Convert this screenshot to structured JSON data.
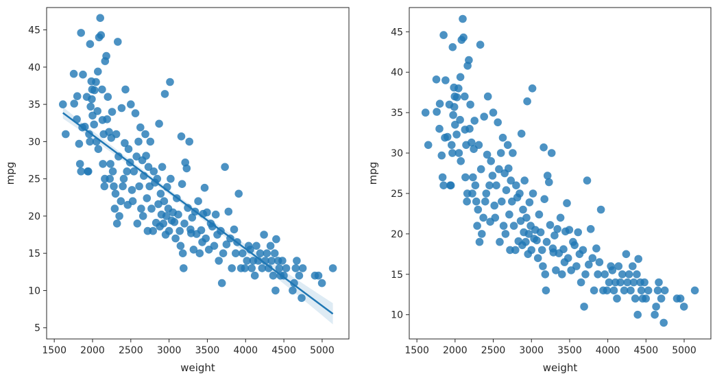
{
  "figure": {
    "background": "#ffffff",
    "marker_color": "#1f77b4",
    "marker_alpha": 0.8
  },
  "chart_data": [
    {
      "type": "scatter",
      "title": "",
      "xlabel": "weight",
      "ylabel": "mpg",
      "xlim": [
        1400,
        5350
      ],
      "ylim": [
        3.5,
        48.0
      ],
      "xticks": [
        1500,
        2000,
        2500,
        3000,
        3500,
        4000,
        4500,
        5000
      ],
      "yticks": [
        5,
        10,
        15,
        20,
        25,
        30,
        35,
        40,
        45
      ],
      "grid": false,
      "legend": "none",
      "regression": {
        "show": true,
        "intercept": 46.2,
        "slope": -0.00765,
        "x_range": [
          1613,
          5140
        ],
        "ci": true
      }
    },
    {
      "type": "scatter",
      "title": "",
      "xlabel": "weight",
      "ylabel": "mpg",
      "xlim": [
        1400,
        5350
      ],
      "ylim": [
        7.0,
        48.0
      ],
      "xticks": [
        1500,
        2000,
        2500,
        3000,
        3500,
        4000,
        4500,
        5000
      ],
      "yticks": [
        10,
        15,
        20,
        25,
        30,
        35,
        40,
        45
      ],
      "grid": false,
      "legend": "none",
      "regression": {
        "show": false
      }
    }
  ],
  "scatter_points": [
    [
      1613,
      35
    ],
    [
      1649,
      31
    ],
    [
      1755,
      39.1
    ],
    [
      1760,
      35.1
    ],
    [
      1795,
      33
    ],
    [
      1800,
      36.1
    ],
    [
      1825,
      29.7
    ],
    [
      1836,
      27
    ],
    [
      1850,
      26
    ],
    [
      1850,
      44.6
    ],
    [
      1867,
      31.9
    ],
    [
      1875,
      39
    ],
    [
      1900,
      32
    ],
    [
      1925,
      36
    ],
    [
      1937,
      26
    ],
    [
      1945,
      26
    ],
    [
      1955,
      31
    ],
    [
      1965,
      30
    ],
    [
      1968,
      43.1
    ],
    [
      1975,
      34.7
    ],
    [
      1985,
      38.1
    ],
    [
      1990,
      35.7
    ],
    [
      1995,
      37
    ],
    [
      2000,
      33.5
    ],
    [
      2020,
      32.3
    ],
    [
      2025,
      36.9
    ],
    [
      2045,
      38
    ],
    [
      2050,
      30
    ],
    [
      2065,
      34.1
    ],
    [
      2070,
      39.4
    ],
    [
      2075,
      29
    ],
    [
      2085,
      44
    ],
    [
      2100,
      46.6
    ],
    [
      2110,
      44.3
    ],
    [
      2125,
      37
    ],
    [
      2130,
      32.9
    ],
    [
      2135,
      27
    ],
    [
      2145,
      31
    ],
    [
      2155,
      24
    ],
    [
      2160,
      25
    ],
    [
      2164,
      40.8
    ],
    [
      2180,
      41.5
    ],
    [
      2190,
      33
    ],
    [
      2200,
      36
    ],
    [
      2215,
      31.3
    ],
    [
      2226,
      25
    ],
    [
      2234,
      27
    ],
    [
      2245,
      30.5
    ],
    [
      2255,
      34
    ],
    [
      2265,
      26
    ],
    [
      2278,
      24
    ],
    [
      2290,
      21
    ],
    [
      2300,
      23
    ],
    [
      2310,
      31
    ],
    [
      2320,
      19
    ],
    [
      2330,
      43.4
    ],
    [
      2340,
      28
    ],
    [
      2350,
      20
    ],
    [
      2370,
      22
    ],
    [
      2380,
      34.5
    ],
    [
      2395,
      24
    ],
    [
      2408,
      25
    ],
    [
      2420,
      29.8
    ],
    [
      2430,
      37
    ],
    [
      2450,
      26
    ],
    [
      2460,
      21.5
    ],
    [
      2470,
      29
    ],
    [
      2490,
      27.2
    ],
    [
      2500,
      35
    ],
    [
      2515,
      23.5
    ],
    [
      2525,
      22
    ],
    [
      2540,
      26
    ],
    [
      2560,
      33.8
    ],
    [
      2575,
      28
    ],
    [
      2585,
      19
    ],
    [
      2600,
      30
    ],
    [
      2610,
      24
    ],
    [
      2625,
      31.9
    ],
    [
      2635,
      21
    ],
    [
      2650,
      27.5
    ],
    [
      2660,
      20
    ],
    [
      2670,
      25.4
    ],
    [
      2690,
      31
    ],
    [
      2700,
      28.1
    ],
    [
      2710,
      22.4
    ],
    [
      2720,
      18
    ],
    [
      2730,
      26.6
    ],
    [
      2745,
      24
    ],
    [
      2755,
      30
    ],
    [
      2770,
      21
    ],
    [
      2790,
      18
    ],
    [
      2800,
      26
    ],
    [
      2815,
      24.5
    ],
    [
      2830,
      19.1
    ],
    [
      2845,
      25
    ],
    [
      2860,
      21.6
    ],
    [
      2870,
      32.4
    ],
    [
      2880,
      18.6
    ],
    [
      2890,
      23
    ],
    [
      2900,
      20.2
    ],
    [
      2910,
      26.6
    ],
    [
      2925,
      19
    ],
    [
      2935,
      22
    ],
    [
      2945,
      36.4
    ],
    [
      2955,
      17.5
    ],
    [
      2965,
      20
    ],
    [
      2975,
      23.9
    ],
    [
      2990,
      21
    ],
    [
      3000,
      18
    ],
    [
      3012,
      38
    ],
    [
      3020,
      25
    ],
    [
      3035,
      19.4
    ],
    [
      3050,
      20.5
    ],
    [
      3070,
      19.2
    ],
    [
      3085,
      17
    ],
    [
      3100,
      22.4
    ],
    [
      3120,
      20.2
    ],
    [
      3139,
      18
    ],
    [
      3150,
      16
    ],
    [
      3160,
      30.7
    ],
    [
      3170,
      24.3
    ],
    [
      3180,
      15
    ],
    [
      3190,
      13
    ],
    [
      3200,
      19
    ],
    [
      3211,
      27.2
    ],
    [
      3230,
      26.4
    ],
    [
      3245,
      21.1
    ],
    [
      3265,
      30
    ],
    [
      3280,
      18.2
    ],
    [
      3288,
      17.7
    ],
    [
      3302,
      19.8
    ],
    [
      3320,
      15.5
    ],
    [
      3340,
      20.6
    ],
    [
      3360,
      17.6
    ],
    [
      3380,
      22
    ],
    [
      3400,
      15
    ],
    [
      3420,
      18.1
    ],
    [
      3433,
      16.5
    ],
    [
      3445,
      20.3
    ],
    [
      3465,
      23.8
    ],
    [
      3480,
      17
    ],
    [
      3495,
      20.5
    ],
    [
      3520,
      15.5
    ],
    [
      3545,
      19
    ],
    [
      3565,
      18.6
    ],
    [
      3590,
      16
    ],
    [
      3610,
      20.2
    ],
    [
      3630,
      17.5
    ],
    [
      3650,
      14
    ],
    [
      3675,
      18
    ],
    [
      3690,
      11
    ],
    [
      3707,
      15
    ],
    [
      3730,
      26.6
    ],
    [
      3750,
      16.2
    ],
    [
      3776,
      20.6
    ],
    [
      3800,
      17
    ],
    [
      3820,
      13
    ],
    [
      3850,
      18.2
    ],
    [
      3870,
      15
    ],
    [
      3890,
      16.5
    ],
    [
      3910,
      23
    ],
    [
      3940,
      13
    ],
    [
      3960,
      15
    ],
    [
      3990,
      13
    ],
    [
      4017,
      14
    ],
    [
      4040,
      16
    ],
    [
      4060,
      15.5
    ],
    [
      4080,
      13
    ],
    [
      4100,
      14
    ],
    [
      4120,
      12
    ],
    [
      4141,
      16
    ],
    [
      4165,
      14
    ],
    [
      4190,
      15
    ],
    [
      4215,
      13
    ],
    [
      4240,
      17.5
    ],
    [
      4257,
      14
    ],
    [
      4278,
      15
    ],
    [
      4300,
      13
    ],
    [
      4325,
      16
    ],
    [
      4340,
      14
    ],
    [
      4360,
      12
    ],
    [
      4380,
      15
    ],
    [
      4391,
      10
    ],
    [
      4400,
      16.9
    ],
    [
      4425,
      14
    ],
    [
      4440,
      13
    ],
    [
      4456,
      12
    ],
    [
      4480,
      14
    ],
    [
      4499,
      12
    ],
    [
      4530,
      13
    ],
    [
      4615,
      10
    ],
    [
      4633,
      11
    ],
    [
      4654,
      13
    ],
    [
      4668,
      14
    ],
    [
      4700,
      12
    ],
    [
      4732,
      9
    ],
    [
      4746,
      13
    ],
    [
      4906,
      12
    ],
    [
      4951,
      12
    ],
    [
      4997,
      11
    ],
    [
      5140,
      13
    ]
  ]
}
